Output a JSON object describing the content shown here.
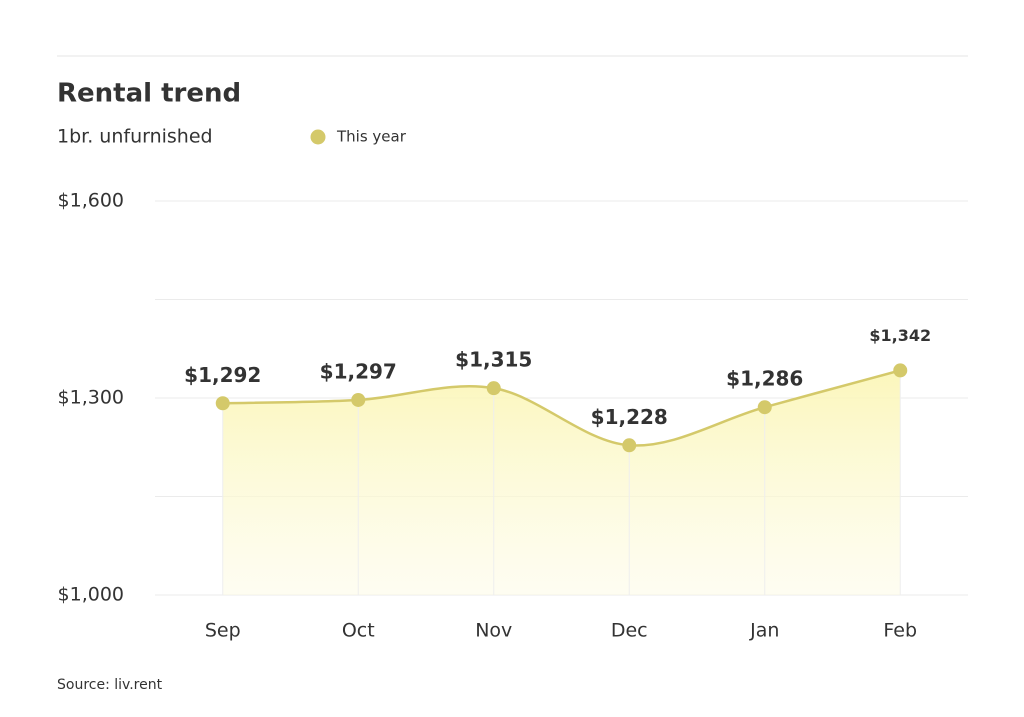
{
  "chart_data": {
    "type": "area-line",
    "title": "Rental trend",
    "subtitle": "1br. unfurnished",
    "source": "Source: liv.rent",
    "categories": [
      "Sep",
      "Oct",
      "Nov",
      "Dec",
      "Jan",
      "Feb"
    ],
    "series": [
      {
        "name": "This year",
        "color": "#d4c96a",
        "values": [
          1292,
          1297,
          1315,
          1228,
          1286,
          1342
        ],
        "value_labels": [
          "$1,292",
          "$1,297",
          "$1,315",
          "$1,228",
          "$1,286",
          "$1,342"
        ]
      }
    ],
    "ylim": [
      1000,
      1600
    ],
    "yticks": [
      {
        "value": 1000,
        "label": "$1,000"
      },
      {
        "value": 1150,
        "label": null
      },
      {
        "value": 1300,
        "label": "$1,300"
      },
      {
        "value": 1450,
        "label": null
      },
      {
        "value": 1600,
        "label": "$1,600"
      }
    ],
    "grid": true
  }
}
